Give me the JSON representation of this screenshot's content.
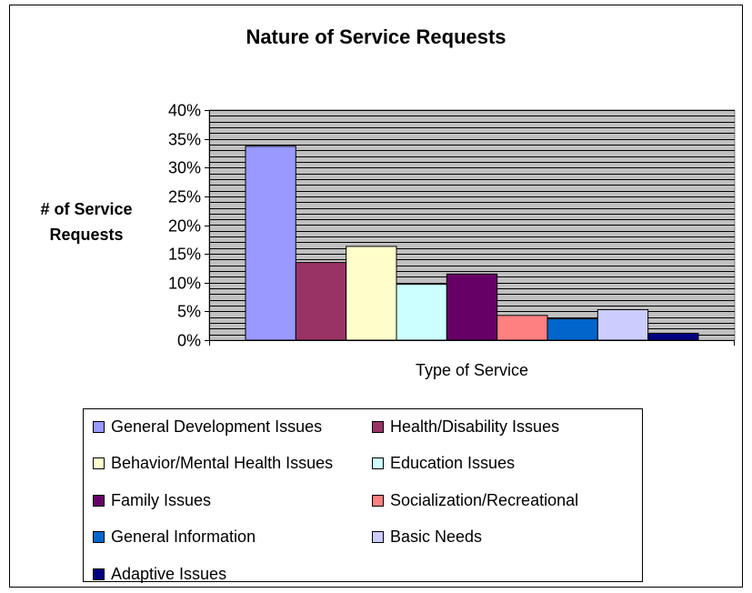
{
  "chart_data": {
    "type": "bar",
    "title": "Nature of Service Requests",
    "xlabel": "Type of Service",
    "ylabel": [
      "# of Service",
      "Requests"
    ],
    "ylim": [
      0,
      0.4
    ],
    "yticks": [
      "0%",
      "5%",
      "10%",
      "15%",
      "20%",
      "25%",
      "30%",
      "35%",
      "40%"
    ],
    "grid": true,
    "legend_position": "bottom",
    "series": [
      {
        "name": "General Development Issues",
        "value": 0.337,
        "color": "#9999ff"
      },
      {
        "name": "Health/Disability Issues",
        "value": 0.135,
        "color": "#993366"
      },
      {
        "name": "Behavior/Mental Health Issues",
        "value": 0.163,
        "color": "#ffffcc"
      },
      {
        "name": "Education Issues",
        "value": 0.097,
        "color": "#ccffff"
      },
      {
        "name": "Family Issues",
        "value": 0.115,
        "color": "#660066"
      },
      {
        "name": "Socialization/Recreational",
        "value": 0.043,
        "color": "#ff8080"
      },
      {
        "name": "General Information",
        "value": 0.037,
        "color": "#0066cc"
      },
      {
        "name": "Basic Needs",
        "value": 0.053,
        "color": "#ccccff"
      },
      {
        "name": "Adaptive Issues",
        "value": 0.012,
        "color": "#000080"
      }
    ]
  }
}
